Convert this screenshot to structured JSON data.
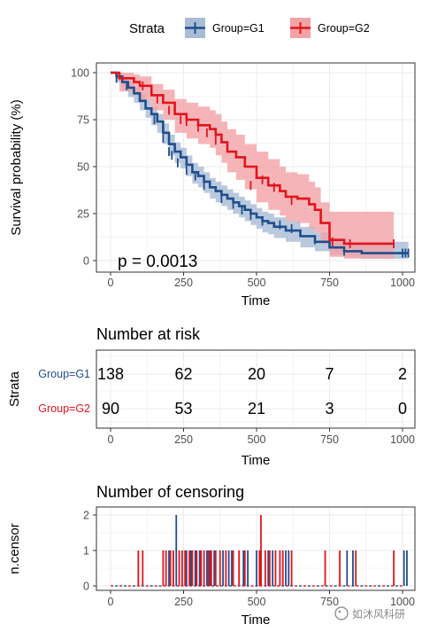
{
  "colors": {
    "g1": "#1f4e8c",
    "g2": "#e3141c",
    "g1_band": "#a9bcd6",
    "g2_band": "#f3a3a6",
    "grid": "#ebebeb",
    "axis_text": "#4d4d4d"
  },
  "legend": {
    "title": "Strata",
    "items": [
      "Group=G1",
      "Group=G2"
    ]
  },
  "chart_data": [
    {
      "type": "line",
      "title": "",
      "xlabel": "Time",
      "ylabel": "Survival probability (%)",
      "xlim": [
        0,
        1000
      ],
      "ylim": [
        0,
        100
      ],
      "xticks": [
        "0",
        "250",
        "500",
        "750",
        "1000"
      ],
      "yticks": [
        "0",
        "25",
        "50",
        "75",
        "100"
      ],
      "annotation": "p = 0.0013",
      "grid": true,
      "legend_position": "top",
      "series": [
        {
          "name": "Group=G1",
          "x": [
            0,
            20,
            40,
            60,
            80,
            100,
            120,
            140,
            160,
            180,
            200,
            220,
            240,
            260,
            280,
            300,
            320,
            340,
            360,
            380,
            400,
            420,
            440,
            460,
            480,
            500,
            520,
            540,
            560,
            600,
            650,
            700,
            750,
            800,
            860,
            900,
            1000,
            1020
          ],
          "y": [
            100,
            98,
            95,
            92,
            89,
            85,
            81,
            78,
            74,
            68,
            62,
            58,
            55,
            51,
            47,
            45,
            42,
            39,
            37,
            35,
            33,
            31,
            29,
            27,
            25,
            23,
            21,
            20,
            18,
            16,
            13,
            10,
            7,
            5,
            4,
            4,
            4,
            4
          ],
          "upper": [
            100,
            100,
            98,
            95,
            92,
            89,
            85,
            82,
            78,
            73,
            67,
            63,
            60,
            56,
            52,
            50,
            47,
            44,
            42,
            40,
            38,
            36,
            34,
            32,
            30,
            28,
            26,
            25,
            23,
            21,
            18,
            15,
            12,
            10,
            10,
            10,
            10,
            10
          ],
          "lower": [
            100,
            95,
            91,
            87,
            84,
            80,
            76,
            72,
            68,
            62,
            56,
            52,
            49,
            45,
            41,
            39,
            36,
            33,
            31,
            29,
            27,
            25,
            23,
            21,
            19,
            17,
            15,
            14,
            12,
            10,
            7,
            5,
            3,
            2,
            1,
            1,
            1,
            1
          ]
        },
        {
          "name": "Group=G2",
          "x": [
            0,
            30,
            60,
            80,
            100,
            140,
            180,
            220,
            260,
            300,
            340,
            360,
            380,
            400,
            430,
            460,
            500,
            540,
            580,
            600,
            640,
            680,
            700,
            720,
            750,
            800,
            850,
            900,
            950,
            970
          ],
          "y": [
            100,
            97,
            97,
            95,
            93,
            88,
            84,
            78,
            75,
            72,
            70,
            67,
            63,
            58,
            55,
            50,
            44,
            40,
            37,
            34,
            33,
            30,
            27,
            20,
            11,
            9,
            9,
            9,
            9,
            9
          ],
          "upper": [
            100,
            100,
            100,
            99,
            98,
            94,
            91,
            86,
            84,
            82,
            80,
            78,
            74,
            70,
            67,
            62,
            58,
            54,
            50,
            47,
            46,
            42,
            39,
            31,
            26,
            26,
            26,
            26,
            26,
            26
          ],
          "lower": [
            100,
            90,
            90,
            88,
            85,
            80,
            75,
            68,
            65,
            62,
            60,
            56,
            52,
            47,
            43,
            38,
            31,
            27,
            24,
            21,
            20,
            17,
            15,
            9,
            2,
            1,
            1,
            1,
            1,
            1
          ]
        }
      ],
      "censor_marks": {
        "Group=G1": {
          "x": [
            20,
            55,
            150,
            180,
            200,
            210,
            230,
            260,
            290,
            320,
            380,
            420,
            450,
            480,
            520,
            580,
            620,
            700,
            800,
            1000,
            1010,
            1020
          ],
          "y": [
            97,
            93,
            75,
            65,
            58,
            56,
            52,
            48,
            45,
            40,
            33,
            30,
            27,
            24,
            21,
            19,
            17,
            11,
            5,
            4,
            4,
            4
          ]
        },
        "Group=G2": {
          "x": [
            110,
            160,
            200,
            240,
            260,
            300,
            330,
            360,
            480,
            520,
            560,
            620,
            760,
            820,
            970
          ],
          "y": [
            93,
            86,
            80,
            75,
            74,
            71,
            68,
            64,
            40,
            43,
            39,
            32,
            10,
            9,
            9
          ]
        }
      }
    },
    {
      "type": "table",
      "title": "Number at risk",
      "ylabel": "Strata",
      "xlabel": "Time",
      "columns": [
        "0",
        "250",
        "500",
        "750",
        "1000"
      ],
      "rows": [
        {
          "name": "Group=G1",
          "values": [
            138,
            62,
            20,
            7,
            2
          ]
        },
        {
          "name": "Group=G2",
          "values": [
            90,
            53,
            21,
            3,
            0
          ]
        }
      ]
    },
    {
      "type": "bar",
      "title": "Number of censoring",
      "xlabel": "Time",
      "ylabel": "n.censor",
      "xlim": [
        0,
        1000
      ],
      "ylim": [
        0,
        2
      ],
      "yticks": [
        "0",
        "1",
        "2"
      ],
      "xticks": [
        "0",
        "250",
        "500",
        "750",
        "1000"
      ],
      "series": [
        {
          "name": "Group=G1",
          "x": [
            200,
            225,
            260,
            275,
            290,
            305,
            330,
            340,
            355,
            385,
            405,
            415,
            455,
            470,
            500,
            515,
            540,
            555,
            600,
            610,
            810,
            830,
            1005,
            1015
          ],
          "values": [
            1,
            2,
            1,
            1,
            1,
            1,
            1,
            1,
            1,
            1,
            1,
            1,
            1,
            1,
            1,
            1,
            1,
            1,
            1,
            1,
            1,
            1,
            1,
            1
          ]
        },
        {
          "name": "Group=G2",
          "x": [
            95,
            110,
            180,
            190,
            205,
            215,
            235,
            245,
            255,
            270,
            280,
            295,
            310,
            320,
            335,
            345,
            360,
            375,
            395,
            420,
            440,
            460,
            510,
            515,
            530,
            545,
            565,
            580,
            590,
            620,
            735,
            785,
            840,
            970
          ],
          "values": [
            1,
            1,
            1,
            1,
            1,
            1,
            1,
            1,
            1,
            1,
            1,
            1,
            1,
            1,
            1,
            1,
            1,
            1,
            1,
            1,
            1,
            1,
            1,
            2,
            1,
            1,
            1,
            1,
            1,
            1,
            1,
            1,
            1,
            1
          ]
        }
      ]
    }
  ],
  "watermark": "如沐风科研"
}
